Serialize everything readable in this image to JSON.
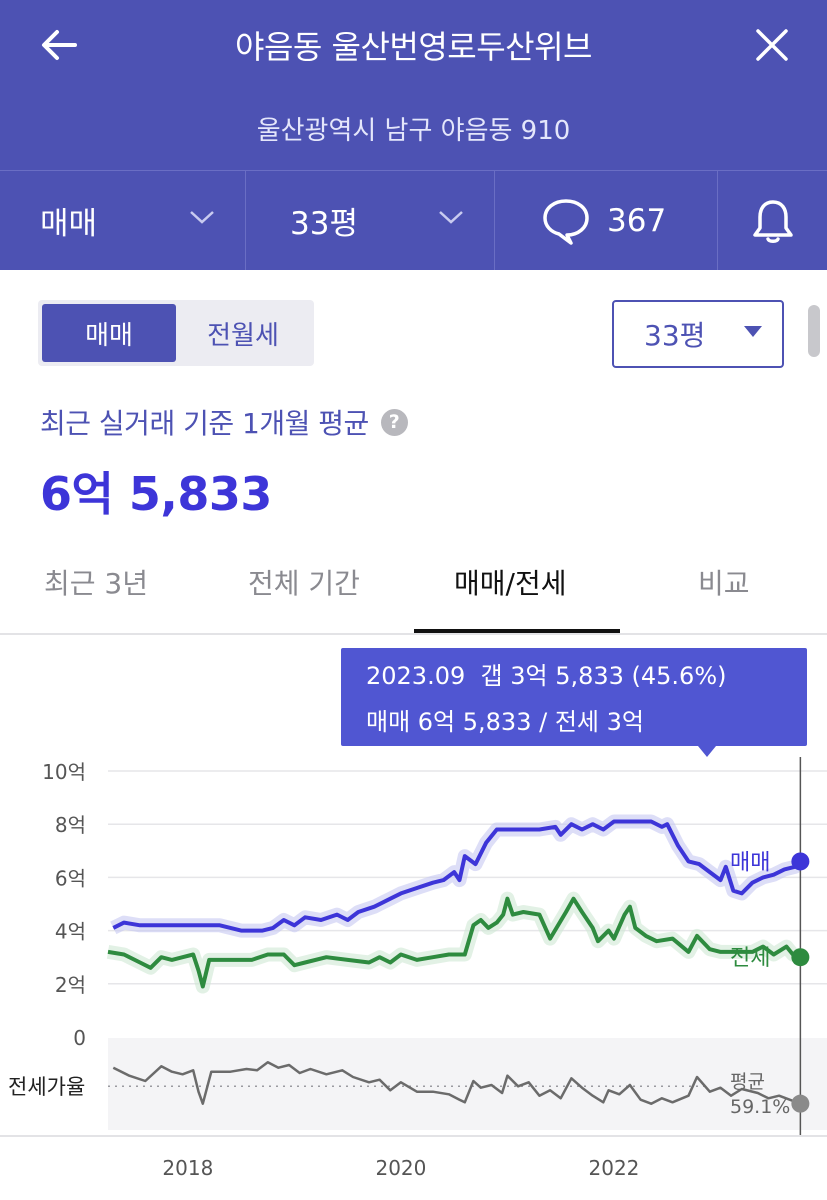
{
  "header": {
    "title": "야음동 울산번영로두산위브",
    "address": "울산광역시 남구 야음동 910"
  },
  "filters": {
    "deal_type": "매매",
    "size": "33평",
    "talk_count": "367"
  },
  "segment": {
    "options": [
      "매매",
      "전월세"
    ],
    "active": "매매"
  },
  "size_select": {
    "value": "33평"
  },
  "summary": {
    "subtitle": "최근 실거래 기준 1개월 평균",
    "price": "6억 5,833"
  },
  "tabs": [
    {
      "label": "최근 3년"
    },
    {
      "label": "전체 기간"
    },
    {
      "label": "매매/전세"
    },
    {
      "label": "비교"
    }
  ],
  "active_tab": "매매/전세",
  "colors": {
    "accent": "#4d52b3",
    "price": "#3d35d8",
    "sale_line": "#3d35d8",
    "jeonse_line": "#2e8b3f",
    "ratio_line": "#6b6b6b"
  },
  "tooltip": {
    "line1": "2023.09  갭 3억 5,833 (45.6%)",
    "line2": "매매 6억 5,833 / 전세 3억"
  },
  "chart_data": {
    "type": "line",
    "x_ticks": [
      "2018",
      "2020",
      "2022"
    ],
    "y_ticks": [
      "10억",
      "8억",
      "6억",
      "4억",
      "2억",
      "0"
    ],
    "ylim": [
      0,
      10
    ],
    "xlim": [
      2017.25,
      2024.0
    ],
    "grid": true,
    "series": [
      {
        "name": "매매",
        "unit": "억",
        "points": [
          [
            2017.3,
            4.1
          ],
          [
            2017.4,
            4.3
          ],
          [
            2017.55,
            4.2
          ],
          [
            2017.7,
            4.2
          ],
          [
            2017.9,
            4.2
          ],
          [
            2018.1,
            4.2
          ],
          [
            2018.3,
            4.2
          ],
          [
            2018.5,
            4.0
          ],
          [
            2018.7,
            4.0
          ],
          [
            2018.8,
            4.1
          ],
          [
            2018.9,
            4.4
          ],
          [
            2019.0,
            4.2
          ],
          [
            2019.1,
            4.5
          ],
          [
            2019.25,
            4.4
          ],
          [
            2019.4,
            4.6
          ],
          [
            2019.5,
            4.4
          ],
          [
            2019.6,
            4.7
          ],
          [
            2019.75,
            4.9
          ],
          [
            2019.9,
            5.2
          ],
          [
            2020.0,
            5.4
          ],
          [
            2020.15,
            5.6
          ],
          [
            2020.3,
            5.8
          ],
          [
            2020.4,
            5.9
          ],
          [
            2020.5,
            6.2
          ],
          [
            2020.55,
            5.9
          ],
          [
            2020.6,
            6.8
          ],
          [
            2020.7,
            6.5
          ],
          [
            2020.8,
            7.3
          ],
          [
            2020.9,
            7.8
          ],
          [
            2021.1,
            7.8
          ],
          [
            2021.3,
            7.8
          ],
          [
            2021.45,
            7.9
          ],
          [
            2021.5,
            7.6
          ],
          [
            2021.6,
            8.0
          ],
          [
            2021.7,
            7.8
          ],
          [
            2021.8,
            8.0
          ],
          [
            2021.9,
            7.8
          ],
          [
            2022.0,
            8.1
          ],
          [
            2022.2,
            8.1
          ],
          [
            2022.35,
            8.1
          ],
          [
            2022.45,
            7.9
          ],
          [
            2022.5,
            8.0
          ],
          [
            2022.6,
            7.2
          ],
          [
            2022.7,
            6.6
          ],
          [
            2022.8,
            6.5
          ],
          [
            2022.9,
            6.2
          ],
          [
            2023.0,
            5.9
          ],
          [
            2023.05,
            6.4
          ],
          [
            2023.12,
            5.5
          ],
          [
            2023.2,
            5.4
          ],
          [
            2023.3,
            5.8
          ],
          [
            2023.4,
            6.0
          ],
          [
            2023.5,
            6.1
          ],
          [
            2023.6,
            6.3
          ],
          [
            2023.7,
            6.4
          ],
          [
            2023.75,
            6.6
          ]
        ]
      },
      {
        "name": "전세",
        "unit": "억",
        "points": [
          [
            2017.25,
            3.2
          ],
          [
            2017.4,
            3.1
          ],
          [
            2017.55,
            2.8
          ],
          [
            2017.65,
            2.6
          ],
          [
            2017.75,
            3.0
          ],
          [
            2017.85,
            2.9
          ],
          [
            2017.95,
            3.0
          ],
          [
            2018.05,
            3.1
          ],
          [
            2018.1,
            2.5
          ],
          [
            2018.14,
            1.9
          ],
          [
            2018.2,
            2.9
          ],
          [
            2018.4,
            2.9
          ],
          [
            2018.6,
            2.9
          ],
          [
            2018.75,
            3.1
          ],
          [
            2018.9,
            3.1
          ],
          [
            2018.95,
            2.9
          ],
          [
            2019.0,
            2.7
          ],
          [
            2019.1,
            2.8
          ],
          [
            2019.3,
            3.0
          ],
          [
            2019.5,
            2.9
          ],
          [
            2019.7,
            2.8
          ],
          [
            2019.8,
            3.0
          ],
          [
            2019.9,
            2.8
          ],
          [
            2020.0,
            3.1
          ],
          [
            2020.15,
            2.9
          ],
          [
            2020.3,
            3.0
          ],
          [
            2020.45,
            3.1
          ],
          [
            2020.6,
            3.1
          ],
          [
            2020.68,
            4.2
          ],
          [
            2020.75,
            4.4
          ],
          [
            2020.82,
            4.1
          ],
          [
            2020.9,
            4.3
          ],
          [
            2020.96,
            4.6
          ],
          [
            2021.0,
            5.2
          ],
          [
            2021.05,
            4.6
          ],
          [
            2021.15,
            4.7
          ],
          [
            2021.3,
            4.6
          ],
          [
            2021.4,
            3.7
          ],
          [
            2021.55,
            4.7
          ],
          [
            2021.62,
            5.2
          ],
          [
            2021.7,
            4.7
          ],
          [
            2021.8,
            4.1
          ],
          [
            2021.85,
            3.6
          ],
          [
            2021.95,
            4.0
          ],
          [
            2022.0,
            3.7
          ],
          [
            2022.1,
            4.6
          ],
          [
            2022.15,
            4.9
          ],
          [
            2022.2,
            4.1
          ],
          [
            2022.3,
            3.8
          ],
          [
            2022.4,
            3.6
          ],
          [
            2022.55,
            3.7
          ],
          [
            2022.7,
            3.2
          ],
          [
            2022.78,
            3.8
          ],
          [
            2022.9,
            3.3
          ],
          [
            2023.0,
            3.2
          ],
          [
            2023.1,
            3.2
          ],
          [
            2023.3,
            3.2
          ],
          [
            2023.4,
            3.4
          ],
          [
            2023.5,
            3.1
          ],
          [
            2023.62,
            3.4
          ],
          [
            2023.68,
            3.1
          ],
          [
            2023.75,
            3.0
          ]
        ]
      },
      {
        "name": "전세가율",
        "unit": "%",
        "average_label": "평균",
        "average_value": "59.1%",
        "average": 59.1,
        "ylim": [
          30,
          90
        ],
        "points": [
          [
            2017.3,
            73
          ],
          [
            2017.45,
            67
          ],
          [
            2017.6,
            63
          ],
          [
            2017.75,
            74
          ],
          [
            2017.85,
            70
          ],
          [
            2017.95,
            68
          ],
          [
            2018.05,
            71
          ],
          [
            2018.1,
            55
          ],
          [
            2018.14,
            46
          ],
          [
            2018.22,
            70
          ],
          [
            2018.4,
            70
          ],
          [
            2018.55,
            72
          ],
          [
            2018.65,
            71
          ],
          [
            2018.75,
            77
          ],
          [
            2018.85,
            73
          ],
          [
            2018.95,
            75
          ],
          [
            2019.05,
            69
          ],
          [
            2019.15,
            72
          ],
          [
            2019.3,
            68
          ],
          [
            2019.45,
            71
          ],
          [
            2019.55,
            66
          ],
          [
            2019.7,
            62
          ],
          [
            2019.8,
            64
          ],
          [
            2019.9,
            56
          ],
          [
            2020.0,
            62
          ],
          [
            2020.15,
            55
          ],
          [
            2020.3,
            55
          ],
          [
            2020.45,
            53
          ],
          [
            2020.55,
            49
          ],
          [
            2020.6,
            47
          ],
          [
            2020.68,
            63
          ],
          [
            2020.75,
            58
          ],
          [
            2020.85,
            60
          ],
          [
            2020.95,
            54
          ],
          [
            2021.0,
            67
          ],
          [
            2021.1,
            59
          ],
          [
            2021.2,
            62
          ],
          [
            2021.3,
            52
          ],
          [
            2021.4,
            56
          ],
          [
            2021.5,
            50
          ],
          [
            2021.6,
            65
          ],
          [
            2021.7,
            58
          ],
          [
            2021.8,
            52
          ],
          [
            2021.9,
            47
          ],
          [
            2021.95,
            56
          ],
          [
            2022.05,
            53
          ],
          [
            2022.15,
            60
          ],
          [
            2022.25,
            49
          ],
          [
            2022.35,
            46
          ],
          [
            2022.45,
            50
          ],
          [
            2022.55,
            47
          ],
          [
            2022.7,
            52
          ],
          [
            2022.78,
            66
          ],
          [
            2022.9,
            55
          ],
          [
            2023.0,
            58
          ],
          [
            2023.1,
            52
          ],
          [
            2023.2,
            57
          ],
          [
            2023.35,
            54
          ],
          [
            2023.45,
            50
          ],
          [
            2023.55,
            52
          ],
          [
            2023.65,
            49
          ],
          [
            2023.75,
            46
          ]
        ]
      }
    ],
    "selected_x": 2023.75,
    "ratio_label": "전세가율"
  }
}
